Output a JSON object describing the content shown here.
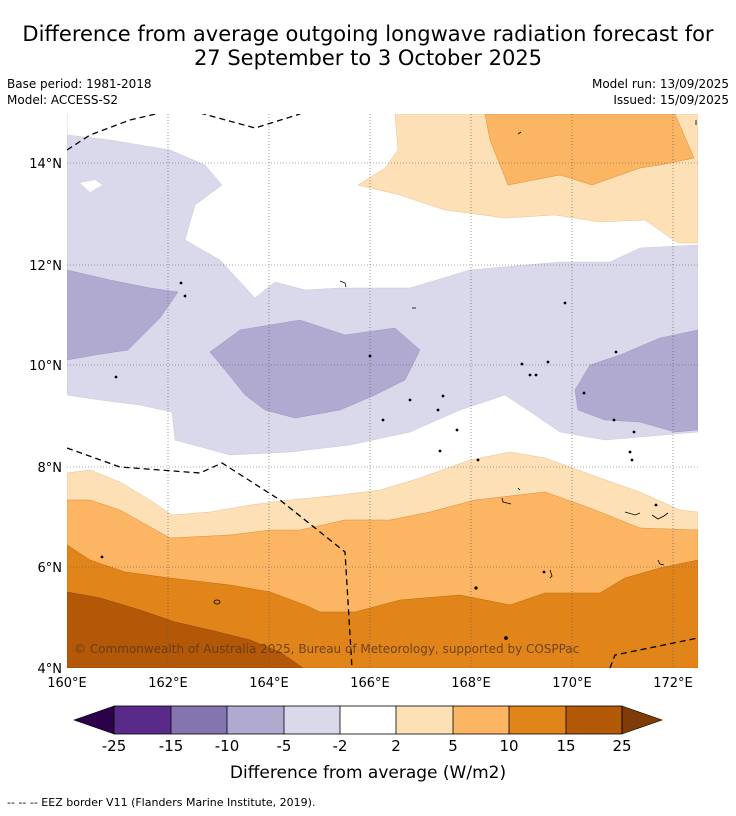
{
  "title": {
    "line1": "Difference from average outgoing longwave radiation forecast for",
    "line2": "27 September to 3 October 2025"
  },
  "meta": {
    "base_period": "Base period: 1981-2018",
    "model": "Model: ACCESS-S2",
    "model_run": "Model run: 13/09/2025",
    "issued": "Issued: 15/09/2025"
  },
  "map": {
    "lat_ticks": [
      {
        "value": 4,
        "label": "4°N"
      },
      {
        "value": 6,
        "label": "6°N"
      },
      {
        "value": 8,
        "label": "8°N"
      },
      {
        "value": 10,
        "label": "10°N"
      },
      {
        "value": 12,
        "label": "12°N"
      },
      {
        "value": 14,
        "label": "14°N"
      }
    ],
    "lon_ticks": [
      {
        "value": 160,
        "label": "160°E"
      },
      {
        "value": 162,
        "label": "162°E"
      },
      {
        "value": 164,
        "label": "164°E"
      },
      {
        "value": 166,
        "label": "166°E"
      },
      {
        "value": 168,
        "label": "168°E"
      },
      {
        "value": 170,
        "label": "170°E"
      },
      {
        "value": 172,
        "label": "172°E"
      }
    ],
    "lon_range": [
      160,
      172.5
    ],
    "lat_range": [
      4,
      15
    ],
    "copyright": "© Commonwealth of Australia 2025, Bureau of Meteorology, supported by COSPPac"
  },
  "colorbar": {
    "boundaries": [
      "-25",
      "-15",
      "-10",
      "-5",
      "-2",
      "2",
      "5",
      "10",
      "15",
      "25"
    ],
    "colors": [
      "#592a8a",
      "#8475b0",
      "#b0a9d0",
      "#d9d9eb",
      "#ffffff",
      "#fde0b6",
      "#fbb563",
      "#e1841a",
      "#b35807"
    ],
    "extend_low": "#2d004b",
    "extend_high": "#7f3b08",
    "label": "Difference from average (W/m2)"
  },
  "footnote": "--  --  -- EEZ border V11 (Flanders Marine Institute, 2019)."
}
